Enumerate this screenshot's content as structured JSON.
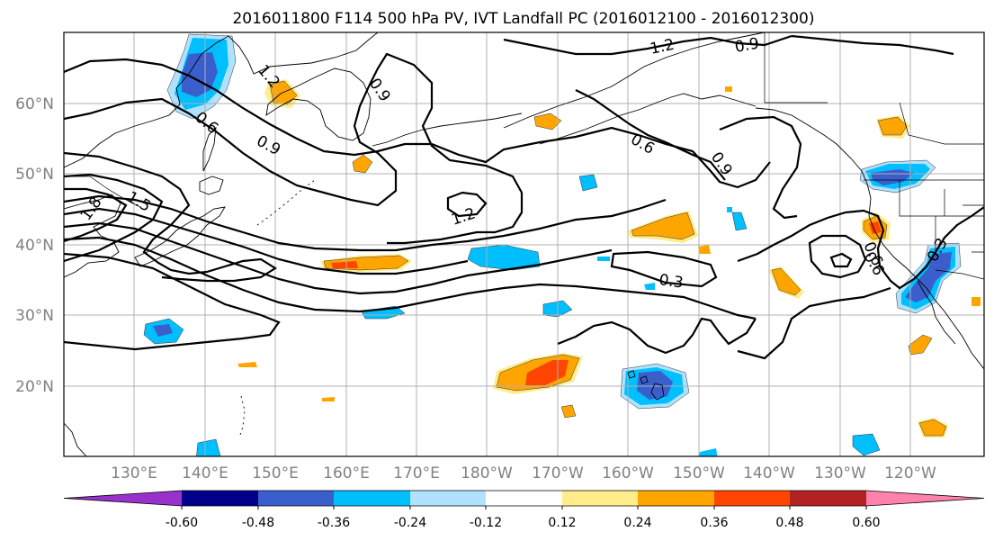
{
  "title": "2016011800 F114 500 hPa PV, IVT Landfall PC (2016012100 - 2016012300)",
  "lat_labels": [
    "60°N",
    "50°N",
    "40°N",
    "30°N",
    "20°N"
  ],
  "lon_labels": [
    "130°E",
    "140°E",
    "150°E",
    "160°E",
    "170°E",
    "180°W",
    "170°W",
    "160°W",
    "150°W",
    "140°W",
    "130°W",
    "120°W"
  ],
  "contour_labels": [
    "1.2",
    "0.9",
    "0.9",
    "0.6",
    "0.9",
    "1.2",
    "0.6",
    "0.9",
    "0.3",
    "0.6",
    "0.3",
    "1.5",
    "1.8",
    "1.2",
    "0.6",
    "0.9"
  ],
  "colorbar": {
    "tick_labels": [
      "-0.60",
      "-0.48",
      "-0.36",
      "-0.24",
      "-0.12",
      "0.12",
      "0.24",
      "0.36",
      "0.48",
      "0.60"
    ],
    "colors": [
      "#9932cc",
      "#00008b",
      "#3a5fcd",
      "#00bfff",
      "#b0e2ff",
      "#ffffff",
      "#ffec8b",
      "#ffa500",
      "#ff4500",
      "#b22222",
      "#ff82ab"
    ]
  },
  "palette": {
    "blue_light": "#b0e2ff",
    "blue": "#00bfff",
    "blue_dark": "#3a5fcd",
    "yellow": "#ffec8b",
    "orange": "#ffa500",
    "red": "#ff4500"
  }
}
